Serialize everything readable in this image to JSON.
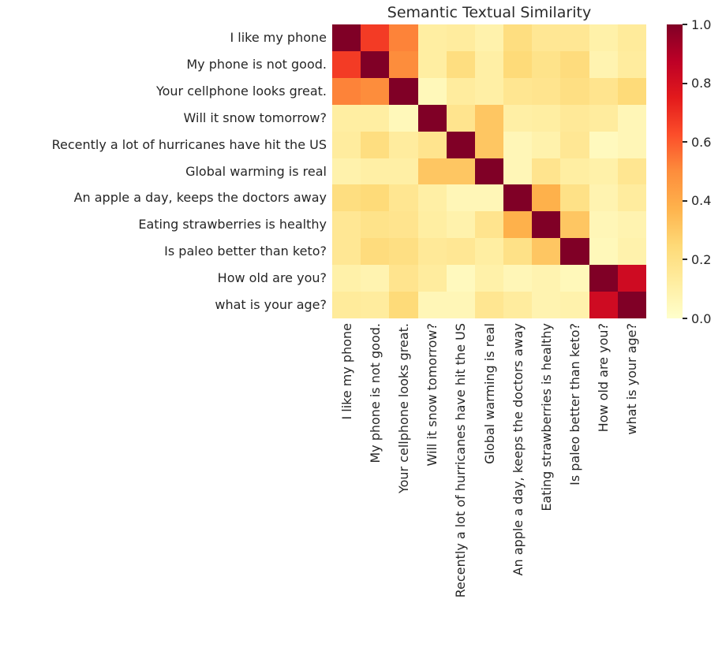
{
  "chart_data": {
    "type": "heatmap",
    "title": "Semantic Textual Similarity",
    "x_labels": [
      "I like my phone",
      "My phone is not good.",
      "Your cellphone looks great.",
      "Will it snow tomorrow?",
      "Recently a lot of hurricanes have hit the US",
      "Global warming is real",
      "An apple a day, keeps the doctors away",
      "Eating strawberries is healthy",
      "Is paleo better than keto?",
      "How old are you?",
      "what is your age?"
    ],
    "y_labels": [
      "I like my phone",
      "My phone is not good.",
      "Your cellphone looks great.",
      "Will it snow tomorrow?",
      "Recently a lot of hurricanes have hit the US",
      "Global warming is real",
      "An apple a day, keeps the doctors away",
      "Eating strawberries is healthy",
      "Is paleo better than keto?",
      "How old are you?",
      "what is your age?"
    ],
    "matrix": [
      [
        1.0,
        0.67,
        0.52,
        0.12,
        0.13,
        0.09,
        0.22,
        0.16,
        0.16,
        0.1,
        0.14
      ],
      [
        0.67,
        1.0,
        0.5,
        0.12,
        0.22,
        0.11,
        0.24,
        0.19,
        0.23,
        0.08,
        0.13
      ],
      [
        0.52,
        0.5,
        1.0,
        0.05,
        0.13,
        0.11,
        0.17,
        0.18,
        0.21,
        0.18,
        0.24
      ],
      [
        0.12,
        0.12,
        0.05,
        1.0,
        0.18,
        0.31,
        0.11,
        0.12,
        0.15,
        0.13,
        0.06
      ],
      [
        0.13,
        0.22,
        0.13,
        0.18,
        1.0,
        0.31,
        0.06,
        0.09,
        0.16,
        0.04,
        0.06
      ],
      [
        0.09,
        0.11,
        0.11,
        0.31,
        0.31,
        1.0,
        0.06,
        0.18,
        0.12,
        0.1,
        0.17
      ],
      [
        0.22,
        0.24,
        0.17,
        0.11,
        0.06,
        0.06,
        1.0,
        0.38,
        0.2,
        0.08,
        0.13
      ],
      [
        0.16,
        0.19,
        0.18,
        0.12,
        0.09,
        0.18,
        0.38,
        1.0,
        0.31,
        0.06,
        0.08
      ],
      [
        0.16,
        0.23,
        0.21,
        0.15,
        0.16,
        0.12,
        0.2,
        0.31,
        1.0,
        0.05,
        0.09
      ],
      [
        0.1,
        0.08,
        0.18,
        0.13,
        0.04,
        0.1,
        0.06,
        0.08,
        0.05,
        1.0,
        0.82
      ],
      [
        0.14,
        0.13,
        0.24,
        0.06,
        0.06,
        0.17,
        0.13,
        0.08,
        0.09,
        0.82,
        1.0
      ]
    ],
    "vmin": 0.0,
    "vmax": 1.0,
    "colormap": "YlOrRd",
    "colormap_anchors": [
      {
        "pos": 0.0,
        "hex": "#ffffcc"
      },
      {
        "pos": 0.125,
        "hex": "#ffeda0"
      },
      {
        "pos": 0.25,
        "hex": "#fed976"
      },
      {
        "pos": 0.375,
        "hex": "#feb24c"
      },
      {
        "pos": 0.5,
        "hex": "#fd8d3c"
      },
      {
        "pos": 0.625,
        "hex": "#fc4e2a"
      },
      {
        "pos": 0.75,
        "hex": "#e31a1c"
      },
      {
        "pos": 0.875,
        "hex": "#bd0026"
      },
      {
        "pos": 1.0,
        "hex": "#800026"
      }
    ],
    "colorbar_ticks": [
      "1.0",
      "0.8",
      "0.6",
      "0.4",
      "0.2",
      "0.0"
    ],
    "legend_position": "right",
    "grid": false
  }
}
